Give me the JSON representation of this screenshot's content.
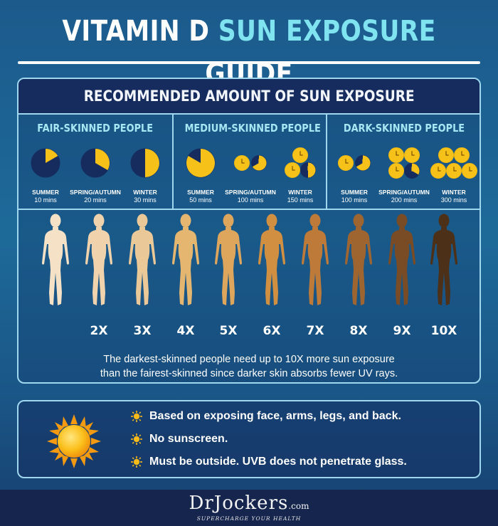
{
  "title": {
    "part1": "VITAMIN D ",
    "part2": "SUN EXPOSURE",
    "part3": " GUIDE"
  },
  "panel": {
    "header": "RECOMMENDED AMOUNT OF SUN EXPOSURE",
    "groups": [
      {
        "title": "FAIR-SKINNED PEOPLE",
        "seasons": [
          {
            "name": "SUMMER",
            "time": "10 mins",
            "fraction": 0.167
          },
          {
            "name": "SPRING/AUTUMN",
            "time": "20 mins",
            "fraction": 0.333
          },
          {
            "name": "WINTER",
            "time": "30 mins",
            "fraction": 0.5
          }
        ]
      },
      {
        "title": "MEDIUM-SKINNED PEOPLE",
        "seasons": [
          {
            "name": "SUMMER",
            "time": "50 mins",
            "fraction": 0.833
          },
          {
            "name": "SPRING/AUTUMN",
            "time": "100 mins",
            "fraction": 1.667
          },
          {
            "name": "WINTER",
            "time": "150 mins",
            "fraction": 2.5
          }
        ]
      },
      {
        "title": "DARK-SKINNED PEOPLE",
        "seasons": [
          {
            "name": "SUMMER",
            "time": "100 mins",
            "fraction": 1.667
          },
          {
            "name": "SPRING/AUTUMN",
            "time": "200 mins",
            "fraction": 3.333
          },
          {
            "name": "WINTER",
            "time": "300 mins",
            "fraction": 5.0
          }
        ]
      }
    ],
    "figures": [
      {
        "multiplier": "",
        "color": "#f5e2c6"
      },
      {
        "multiplier": "2X",
        "color": "#f0d3ad"
      },
      {
        "multiplier": "3X",
        "color": "#ebc897"
      },
      {
        "multiplier": "4X",
        "color": "#e4b66f"
      },
      {
        "multiplier": "5X",
        "color": "#dea55c"
      },
      {
        "multiplier": "6X",
        "color": "#d18f42"
      },
      {
        "multiplier": "7X",
        "color": "#be7a38"
      },
      {
        "multiplier": "8X",
        "color": "#9f6530"
      },
      {
        "multiplier": "9X",
        "color": "#7a4c25"
      },
      {
        "multiplier": "10X",
        "color": "#4d3018"
      }
    ],
    "caption_line1": "The darkest-skinned people need up to 10X more sun exposure",
    "caption_line2": "than the fairest-skinned since darker skin absorbs fewer UV rays."
  },
  "notes": [
    "Based on exposing face, arms, legs, and back.",
    "No sunscreen.",
    "Must be outside. UVB does not penetrate glass."
  ],
  "footer": {
    "logo": "DrJockers",
    "logo_suffix": ".com",
    "tagline": "SUPERCHARGE YOUR HEALTH"
  },
  "colors": {
    "navy": "#162c5e",
    "sun": "#f6c21a",
    "accent": "#7fe3f0",
    "border": "#9ed7ee"
  }
}
